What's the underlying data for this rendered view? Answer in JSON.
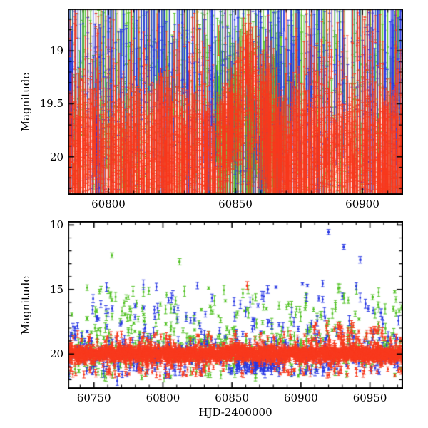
{
  "figure": {
    "background": "#ffffff",
    "frame_color": "#000000"
  },
  "chart_data": [
    {
      "type": "scatter",
      "panel": "top",
      "title": "",
      "xlabel": "",
      "ylabel": "Magnitude",
      "xlim": [
        60784,
        60916
      ],
      "ylim": [
        18.6,
        20.36
      ],
      "y_axis_inverted": true,
      "grid": false,
      "legend": "none",
      "xticks": [
        {
          "value": 60800,
          "label": "60800"
        },
        {
          "value": 60850,
          "label": "60850"
        },
        {
          "value": 60900,
          "label": "60900"
        }
      ],
      "yticks": [
        {
          "value": 19,
          "label": "19"
        },
        {
          "value": 19.5,
          "label": "19.5"
        },
        {
          "value": 20,
          "label": "20"
        }
      ],
      "x_minor_step": 10,
      "y_minor_step": 0.1,
      "draw_order": [
        "green",
        "blue",
        "red"
      ],
      "features": {
        "hump": {
          "start": 60840,
          "peak": 60855,
          "end": 60872,
          "base_mag": 19.95,
          "peak_mag": 19.0,
          "replace_prob": 0.8
        }
      },
      "series": [
        {
          "name": "green",
          "color": "#53c226",
          "points": 850,
          "marker_px": 2.2,
          "band_mag": 19.65,
          "band_sigma": 0.55,
          "err_min": 0.25,
          "err_max": 0.9,
          "clump": {
            "x": [
              60842,
              60870
            ],
            "mag": [
              19.35,
              20.15
            ],
            "points": 130
          }
        },
        {
          "name": "blue",
          "color": "#2838e4",
          "points": 620,
          "marker_px": 2.2,
          "band_mag": 19.6,
          "band_sigma": 0.55,
          "err_min": 0.25,
          "err_max": 0.9
        },
        {
          "name": "red",
          "color": "#f8391d",
          "points": 2400,
          "marker_px": 2.0,
          "mixture": [
            {
              "weight": 0.9,
              "dist": "normal",
              "mag": 20.02,
              "sigma": 0.24
            },
            {
              "weight": 0.1,
              "dist": "uniform",
              "range": [
                18.75,
                19.8
              ]
            }
          ],
          "err_min": 0.1,
          "err_max": 0.45,
          "follows_hump": true
        }
      ],
      "outliers": []
    },
    {
      "type": "scatter",
      "panel": "bottom",
      "title": "",
      "xlabel": "HJD-2400000",
      "ylabel": "Magnitude",
      "xlim": [
        60731,
        60974
      ],
      "ylim": [
        9.7,
        22.7
      ],
      "y_axis_inverted": true,
      "grid": false,
      "legend": "none",
      "xticks": [
        {
          "value": 60750,
          "label": "60750"
        },
        {
          "value": 60800,
          "label": "60800"
        },
        {
          "value": 60850,
          "label": "60850"
        },
        {
          "value": 60900,
          "label": "60900"
        },
        {
          "value": 60950,
          "label": "60950"
        }
      ],
      "yticks": [
        {
          "value": 10,
          "label": "10"
        },
        {
          "value": 15,
          "label": "15"
        },
        {
          "value": 20,
          "label": "20"
        }
      ],
      "x_minor_step": 10,
      "y_minor_step": 1,
      "draw_order": [
        "green",
        "blue",
        "red"
      ],
      "features": {
        "hump": {
          "start": 60838,
          "peak": 60853,
          "end": 60870,
          "base_mag": 19.85,
          "peak_mag": 19.25,
          "replace_prob": 0.45
        }
      },
      "series": [
        {
          "name": "green",
          "color": "#53c226",
          "points": 520,
          "marker_px": 2.6,
          "mixture": [
            {
              "weight": 0.6,
              "dist": "normal",
              "mag": 19.6,
              "sigma": 0.8
            },
            {
              "weight": 0.18,
              "dist": "uniform",
              "range": [
                16.2,
                18.4
              ]
            },
            {
              "weight": 0.07,
              "dist": "uniform",
              "range": [
                14.8,
                16.2
              ]
            },
            {
              "weight": 0.15,
              "dist": "uniform",
              "range": [
                20.3,
                21.9
              ]
            }
          ],
          "err_min": 0.08,
          "err_max": 0.4
        },
        {
          "name": "blue",
          "color": "#2838e4",
          "points": 430,
          "marker_px": 2.6,
          "mixture": [
            {
              "weight": 0.55,
              "dist": "normal",
              "mag": 19.7,
              "sigma": 0.7
            },
            {
              "weight": 0.15,
              "dist": "uniform",
              "range": [
                16.0,
                18.4
              ]
            },
            {
              "weight": 0.05,
              "dist": "uniform",
              "range": [
                14.5,
                16.0
              ]
            },
            {
              "weight": 0.25,
              "dist": "uniform",
              "range": [
                20.3,
                21.6
              ]
            }
          ],
          "err_min": 0.08,
          "err_max": 0.4,
          "clump": {
            "x": [
              60853,
              60885
            ],
            "mag": [
              20.3,
              21.4
            ],
            "points": 85
          }
        },
        {
          "name": "red",
          "color": "#f8391d",
          "points": 2800,
          "marker_px": 2.6,
          "mixture": [
            {
              "weight": 0.9,
              "dist": "normal",
              "mag": 20.0,
              "sigma": 0.28
            },
            {
              "weight": 0.06,
              "dist": "uniform",
              "range": [
                20.6,
                21.7
              ]
            },
            {
              "weight": 0.04,
              "dist": "uniform",
              "range": [
                18.4,
                19.4
              ]
            }
          ],
          "err_min": 0.08,
          "err_max": 0.3,
          "follows_hump": true,
          "clump": {
            "x": [
              60905,
              60960
            ],
            "mag": [
              17.6,
              19.3
            ],
            "points": 55
          }
        }
      ],
      "outliers": [
        {
          "series": "green",
          "x": 60745,
          "mag": 17.25,
          "err": 0.15
        },
        {
          "series": "green",
          "x": 60763,
          "mag": 12.35,
          "err": 0.2
        },
        {
          "series": "green",
          "x": 60812,
          "mag": 12.85,
          "err": 0.25
        },
        {
          "series": "red",
          "x": 60861,
          "mag": 14.7,
          "err": 0.3
        },
        {
          "series": "blue",
          "x": 60876,
          "mag": 15.0,
          "err": 0.3
        },
        {
          "series": "blue",
          "x": 60920,
          "mag": 10.55,
          "err": 0.2
        },
        {
          "series": "blue",
          "x": 60931,
          "mag": 11.7,
          "err": 0.2
        },
        {
          "series": "blue",
          "x": 60943,
          "mag": 12.7,
          "err": 0.25
        },
        {
          "series": "green",
          "x": 60952,
          "mag": 15.6,
          "err": 0.2
        },
        {
          "series": "blue",
          "x": 60958,
          "mag": 16.8,
          "err": 0.3
        }
      ]
    }
  ]
}
